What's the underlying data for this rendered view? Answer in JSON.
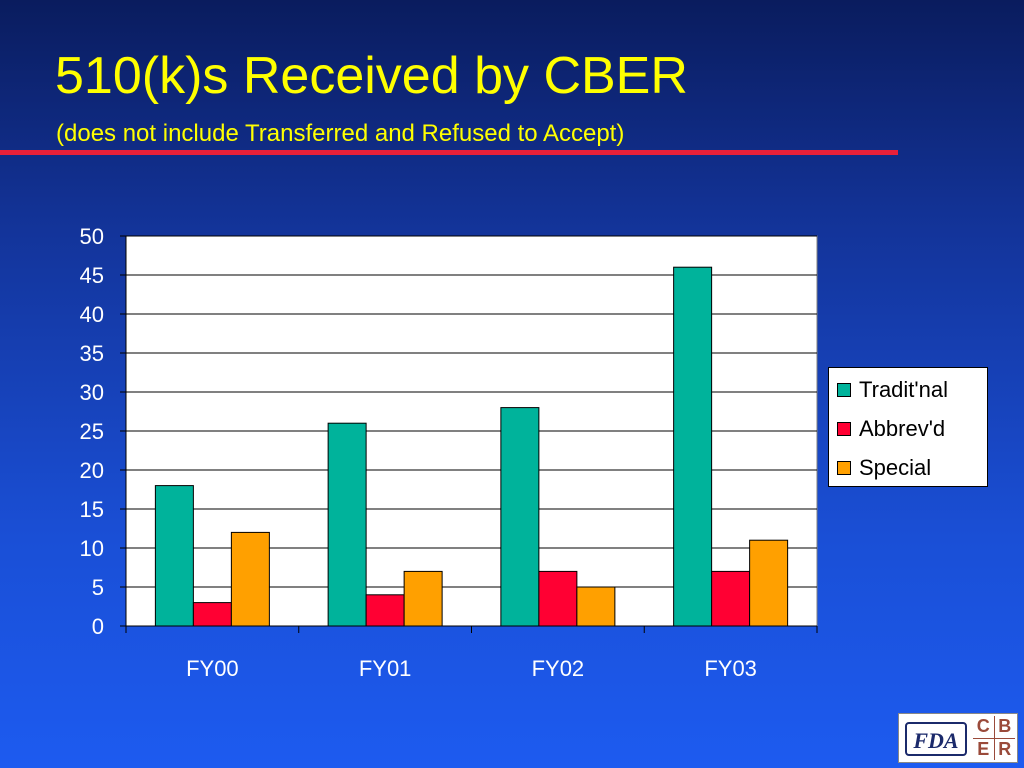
{
  "title": "510(k)s Received by CBER",
  "subtitle": "(does not include Transferred and Refused to Accept)",
  "logo": {
    "left_text": "FDA",
    "letters": [
      "C",
      "B",
      "E",
      "R"
    ]
  },
  "chart_data": {
    "type": "bar",
    "categories": [
      "FY00",
      "FY01",
      "FY02",
      "FY03"
    ],
    "series": [
      {
        "name": "Tradit'nal",
        "color": "#00b39b",
        "values": [
          18,
          26,
          28,
          46
        ]
      },
      {
        "name": "Abbrev'd",
        "color": "#ff0033",
        "values": [
          3,
          4,
          7,
          7
        ]
      },
      {
        "name": "Special",
        "color": "#ffa000",
        "values": [
          12,
          7,
          5,
          11
        ]
      }
    ],
    "ylim": [
      0,
      50
    ],
    "yticks": [
      0,
      5,
      10,
      15,
      20,
      25,
      30,
      35,
      40,
      45,
      50
    ],
    "grid": true,
    "legend": "right",
    "plot_background": "#ffffff"
  }
}
